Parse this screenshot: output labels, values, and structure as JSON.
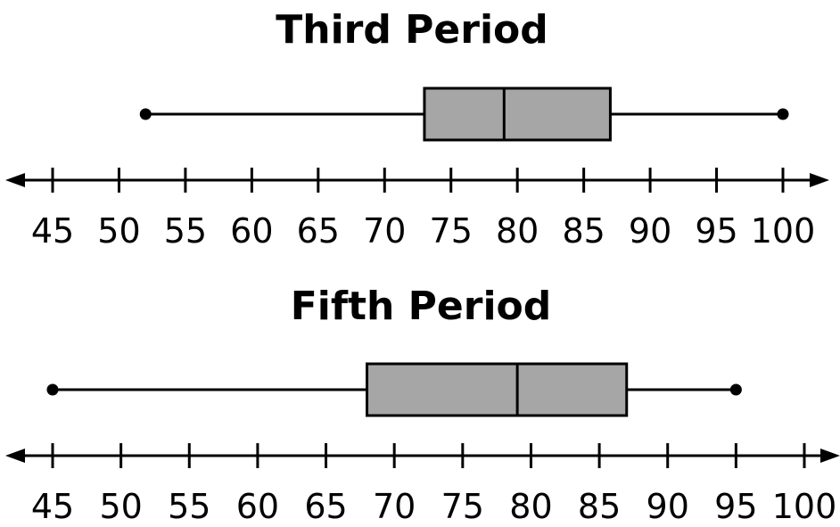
{
  "chart_data": [
    {
      "type": "box",
      "title": "Third Period",
      "min": 52,
      "q1": 73,
      "median": 79,
      "q3": 87,
      "max": 100,
      "xlim": [
        45,
        100
      ],
      "ticks": [
        "45",
        "50",
        "55",
        "60",
        "65",
        "70",
        "75",
        "80",
        "85",
        "90",
        "95",
        "100"
      ],
      "box_color": "#a6a6a6"
    },
    {
      "type": "box",
      "title": "Fifth Period",
      "min": 45,
      "q1": 68,
      "median": 79,
      "q3": 87,
      "max": 95,
      "xlim": [
        45,
        100
      ],
      "ticks": [
        "45",
        "50",
        "55",
        "60",
        "65",
        "70",
        "75",
        "80",
        "85",
        "90",
        "95",
        "100"
      ],
      "box_color": "#a6a6a6"
    }
  ]
}
